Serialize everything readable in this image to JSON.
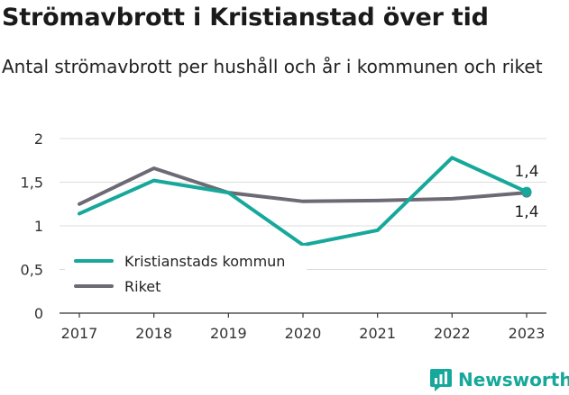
{
  "header": {
    "title": "Strömavbrott i Kristianstad över tid",
    "subtitle": "Antal strömavbrott per hushåll och år i kommunen och riket"
  },
  "brand": {
    "name": "Newsworthy",
    "color": "#16a89a",
    "icon": "bar-chart-logo-icon"
  },
  "chart_data": {
    "type": "line",
    "x": [
      "2017",
      "2018",
      "2019",
      "2020",
      "2021",
      "2022",
      "2023"
    ],
    "ylim": [
      0,
      2
    ],
    "yticks": [
      0,
      0.5,
      1,
      1.5,
      2
    ],
    "ytick_labels": [
      "0",
      "0,5",
      "1",
      "1,5",
      "2"
    ],
    "grid": true,
    "legend_position": "bottom-left",
    "series": [
      {
        "name": "Kristianstads kommun",
        "color": "#16a89a",
        "values": [
          1.14,
          1.52,
          1.38,
          0.78,
          0.95,
          1.78,
          1.39
        ],
        "end_label": "1,4"
      },
      {
        "name": "Riket",
        "color": "#6d6a75",
        "values": [
          1.25,
          1.66,
          1.38,
          1.28,
          1.29,
          1.31,
          1.38
        ],
        "end_label": "1,4"
      }
    ]
  }
}
